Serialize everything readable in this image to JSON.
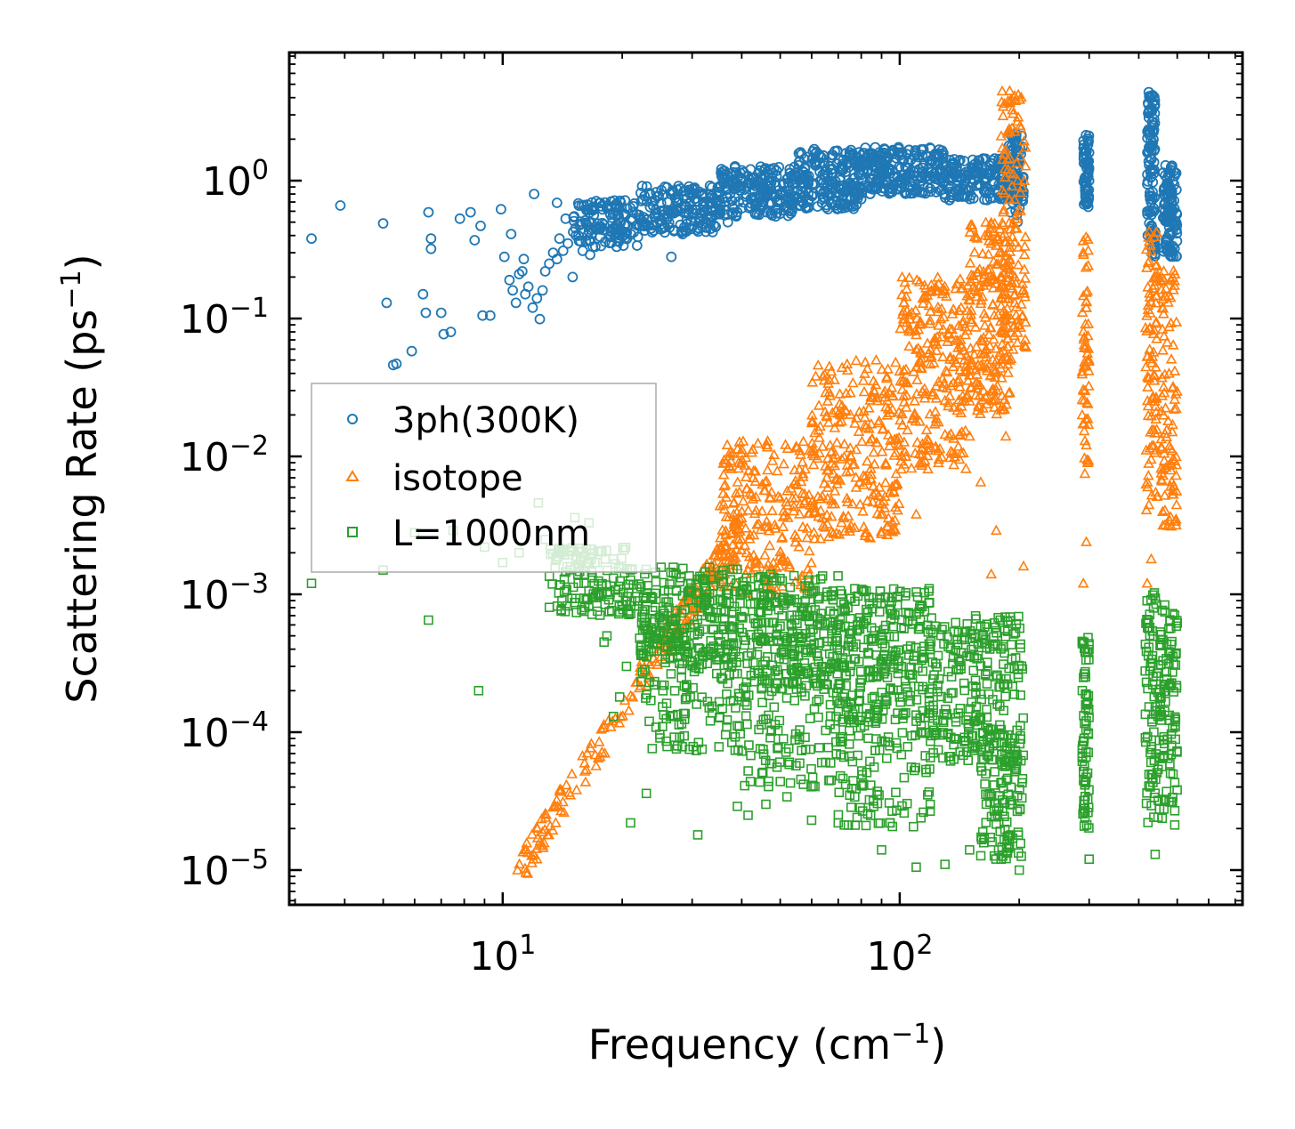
{
  "chart_data": {
    "type": "scatter",
    "title": "",
    "xlabel": "Frequency (cm",
    "xlabel_sup": "−1",
    "xlabel_tail": ")",
    "ylabel": "Scattering Rate (ps",
    "ylabel_sup": "−1",
    "ylabel_tail": ")",
    "xscale": "log",
    "yscale": "log",
    "xlim": [
      2.9,
      730
    ],
    "ylim": [
      5.6e-06,
      8.5
    ],
    "x_ticks": [
      {
        "value": 10,
        "base": "10",
        "exp": "1"
      },
      {
        "value": 100,
        "base": "10",
        "exp": "2"
      }
    ],
    "y_ticks": [
      {
        "value": 1,
        "base": "10",
        "exp": "0"
      },
      {
        "value": 0.1,
        "base": "10",
        "exp": "−1"
      },
      {
        "value": 0.01,
        "base": "10",
        "exp": "−2"
      },
      {
        "value": 0.001,
        "base": "10",
        "exp": "−3"
      },
      {
        "value": 0.0001,
        "base": "10",
        "exp": "−4"
      },
      {
        "value": 1e-05,
        "base": "10",
        "exp": "−5"
      }
    ],
    "legend_position": "center-left",
    "series": [
      {
        "name": "3ph(300K)",
        "marker": "circle",
        "color": "#1f77b4",
        "points": [
          [
            3.3,
            0.38
          ],
          [
            3.9,
            0.66
          ],
          [
            5.0,
            0.49
          ],
          [
            5.1,
            0.13
          ],
          [
            5.3,
            0.046
          ],
          [
            5.4,
            0.047
          ],
          [
            5.9,
            0.058
          ],
          [
            6.3,
            0.15
          ],
          [
            6.5,
            0.59
          ],
          [
            6.6,
            0.38
          ],
          [
            6.6,
            0.32
          ],
          [
            6.4,
            0.11
          ],
          [
            7.0,
            0.11
          ],
          [
            7.1,
            0.077
          ],
          [
            7.4,
            0.08
          ],
          [
            7.8,
            0.53
          ],
          [
            8.3,
            0.59
          ],
          [
            8.5,
            0.37
          ],
          [
            8.8,
            0.47
          ],
          [
            8.9,
            0.105
          ],
          [
            9.3,
            0.105
          ],
          [
            9.9,
            0.62
          ],
          [
            10.5,
            0.41
          ],
          [
            11.3,
            0.27
          ],
          [
            12.0,
            0.8
          ],
          [
            12.4,
            0.099
          ],
          [
            13.7,
            0.69
          ],
          [
            14.4,
            0.53
          ],
          [
            15.0,
            0.2
          ],
          [
            16.3,
            0.62
          ],
          [
            10.1,
            0.28
          ],
          [
            10.4,
            0.19
          ],
          [
            10.6,
            0.16
          ],
          [
            10.8,
            0.13
          ],
          [
            11.0,
            0.21
          ],
          [
            11.2,
            0.22
          ],
          [
            11.4,
            0.15
          ],
          [
            11.6,
            0.17
          ],
          [
            11.9,
            0.12
          ],
          [
            12.2,
            0.14
          ],
          [
            12.6,
            0.16
          ],
          [
            12.8,
            0.22
          ],
          [
            13.1,
            0.25
          ],
          [
            13.4,
            0.3
          ],
          [
            13.7,
            0.27
          ],
          [
            13.9,
            0.38
          ],
          [
            14.2,
            0.31
          ],
          [
            14.6,
            0.35
          ],
          [
            15.3,
            0.4
          ],
          [
            15.9,
            0.31
          ],
          [
            16.6,
            0.29
          ],
          [
            17.1,
            0.46
          ],
          [
            18.1,
            0.36
          ],
          [
            19.2,
            0.42
          ],
          [
            20.6,
            0.47
          ],
          [
            21.9,
            0.39
          ],
          [
            23.1,
            0.52
          ],
          [
            25.3,
            0.45
          ],
          [
            26.6,
            0.28
          ],
          [
            28.4,
            0.41
          ],
          [
            30.1,
            0.58
          ],
          [
            32.5,
            0.46
          ],
          [
            35.2,
            0.61
          ],
          [
            36.9,
            0.5
          ]
        ],
        "bands": [
          {
            "x": [
              15,
              22
            ],
            "y": [
              0.33,
              0.72
            ],
            "n": 130
          },
          {
            "x": [
              22,
              35
            ],
            "y": [
              0.42,
              0.92
            ],
            "n": 180
          },
          {
            "x": [
              35,
              55
            ],
            "y": [
              0.55,
              1.3
            ],
            "n": 210
          },
          {
            "x": [
              55,
              80
            ],
            "y": [
              0.62,
              1.7
            ],
            "n": 210
          },
          {
            "x": [
              80,
              130
            ],
            "y": [
              0.8,
              1.75
            ],
            "n": 240
          },
          {
            "x": [
              130,
              200
            ],
            "y": [
              0.72,
              1.45
            ],
            "n": 200
          },
          {
            "x": [
              188,
              205
            ],
            "y": [
              0.5,
              2.2
            ],
            "n": 60
          },
          {
            "x": [
              290,
              300
            ],
            "y": [
              0.6,
              2.2
            ],
            "n": 60
          },
          {
            "x": [
              420,
              440
            ],
            "y": [
              0.28,
              4.5
            ],
            "n": 110
          },
          {
            "x": [
              460,
              500
            ],
            "y": [
              0.28,
              1.3
            ],
            "n": 110
          }
        ]
      },
      {
        "name": "isotope",
        "marker": "triangle",
        "color": "#ff7f0e",
        "points": [
          [
            10.9,
            1e-05
          ],
          [
            12.2,
            1.2e-05
          ],
          [
            13.6,
            2.2e-05
          ],
          [
            14.8,
            3.5e-05
          ],
          [
            16.1,
            5.2e-05
          ],
          [
            17.5,
            8.5e-05
          ],
          [
            18.9,
            0.00012
          ],
          [
            20.3,
            0.00017
          ],
          [
            21.8,
            0.00023
          ],
          [
            23.5,
            0.00031
          ],
          [
            25.4,
            0.00042
          ],
          [
            27.5,
            0.00058
          ],
          [
            29.0,
            0.00065
          ],
          [
            31.0,
            0.0009
          ],
          [
            35.0,
            0.0014
          ],
          [
            38.0,
            0.0019
          ],
          [
            45.0,
            0.004
          ],
          [
            55.0,
            0.0062
          ],
          [
            65.0,
            0.0085
          ],
          [
            75.0,
            0.0078
          ],
          [
            90.0,
            0.0045
          ],
          [
            110.0,
            0.0038
          ],
          [
            125.0,
            0.011
          ],
          [
            150.0,
            0.014
          ],
          [
            160.0,
            0.0065
          ],
          [
            170.0,
            0.0014
          ],
          [
            175.0,
            0.0029
          ],
          [
            185.0,
            0.014
          ],
          [
            195.0,
            0.2
          ],
          [
            205.0,
            0.0016
          ],
          [
            290.0,
            0.0012
          ],
          [
            295.0,
            0.0024
          ],
          [
            420.0,
            0.0012
          ],
          [
            430.0,
            0.0018
          ],
          [
            440.0,
            0.2
          ]
        ],
        "bands": [
          {
            "x": [
              11,
              25
            ],
            "y": [
              1e-05,
              0.0004
            ],
            "n": 90,
            "diag": true
          },
          {
            "x": [
              25,
              40
            ],
            "y": [
              0.0004,
              0.003
            ],
            "n": 120,
            "diag": true
          },
          {
            "x": [
              35,
              60
            ],
            "y": [
              0.001,
              0.013
            ],
            "n": 220
          },
          {
            "x": [
              60,
              100
            ],
            "y": [
              0.0025,
              0.05
            ],
            "n": 260
          },
          {
            "x": [
              100,
              150
            ],
            "y": [
              0.008,
              0.2
            ],
            "n": 260
          },
          {
            "x": [
              150,
              190
            ],
            "y": [
              0.02,
              0.5
            ],
            "n": 200
          },
          {
            "x": [
              180,
              208
            ],
            "y": [
              0.05,
              4.5
            ],
            "n": 140
          },
          {
            "x": [
              288,
              300
            ],
            "y": [
              0.007,
              0.4
            ],
            "n": 60
          },
          {
            "x": [
              415,
              445
            ],
            "y": [
              0.004,
              0.45
            ],
            "n": 90
          },
          {
            "x": [
              455,
              500
            ],
            "y": [
              0.003,
              0.25
            ],
            "n": 100
          }
        ]
      },
      {
        "name": "L=1000nm",
        "marker": "square",
        "color": "#2ca02c",
        "points": [
          [
            3.3,
            0.0012
          ],
          [
            6.5,
            0.00065
          ],
          [
            8.7,
            0.0002
          ],
          [
            21.0,
            2.2e-05
          ],
          [
            23.0,
            3.6e-05
          ],
          [
            31.0,
            1.8e-05
          ],
          [
            39.0,
            2.9e-05
          ],
          [
            41.5,
            2.5e-05
          ],
          [
            46.0,
            3e-05
          ],
          [
            52.0,
            3.4e-05
          ],
          [
            60.0,
            2.3e-05
          ],
          [
            70.0,
            2.2e-05
          ],
          [
            90.0,
            1.4e-05
          ],
          [
            110.0,
            1.05e-05
          ],
          [
            130.0,
            1.1e-05
          ],
          [
            150.0,
            1.4e-05
          ],
          [
            180.0,
            1.2e-05
          ],
          [
            200.0,
            1e-05
          ],
          [
            300.0,
            1.2e-05
          ],
          [
            440.0,
            1.3e-05
          ],
          [
            5.0,
            0.0015
          ],
          [
            6.0,
            0.0028
          ],
          [
            7.5,
            0.0029
          ],
          [
            9.0,
            0.0022
          ],
          [
            10.0,
            0.0017
          ],
          [
            11.0,
            0.002
          ],
          [
            12.3,
            0.0046
          ],
          [
            12.8,
            0.0025
          ],
          [
            13.6,
            0.0018
          ],
          [
            14.3,
            0.0021
          ],
          [
            15.2,
            0.0036
          ],
          [
            16.5,
            0.0033
          ],
          [
            17.3,
            0.0017
          ],
          [
            18.0,
            0.00045
          ],
          [
            19.0,
            0.00013
          ],
          [
            20.5,
            0.0003
          ],
          [
            15.5,
            0.0012
          ],
          [
            14.1,
            0.0009
          ],
          [
            16.9,
            0.00095
          ],
          [
            18.3,
            0.0005
          ],
          [
            19.7,
            0.00018
          ]
        ],
        "bands": [
          {
            "x": [
              13,
              22
            ],
            "y": [
              0.0007,
              0.0022
            ],
            "n": 140
          },
          {
            "x": [
              22,
              40
            ],
            "y": [
              0.0003,
              0.0016
            ],
            "n": 250
          },
          {
            "x": [
              22,
              40
            ],
            "y": [
              7e-05,
              0.0006
            ],
            "n": 120
          },
          {
            "x": [
              40,
              70
            ],
            "y": [
              0.0002,
              0.0014
            ],
            "n": 260
          },
          {
            "x": [
              40,
              70
            ],
            "y": [
              4e-05,
              0.0003
            ],
            "n": 120
          },
          {
            "x": [
              70,
              120
            ],
            "y": [
              0.00012,
              0.0011
            ],
            "n": 260
          },
          {
            "x": [
              70,
              120
            ],
            "y": [
              2e-05,
              0.00015
            ],
            "n": 120
          },
          {
            "x": [
              120,
              205
            ],
            "y": [
              6e-05,
              0.0007
            ],
            "n": 240
          },
          {
            "x": [
              160,
              205
            ],
            "y": [
              1.2e-05,
              0.0001
            ],
            "n": 120
          },
          {
            "x": [
              288,
              300
            ],
            "y": [
              2e-05,
              0.0006
            ],
            "n": 70
          },
          {
            "x": [
              415,
              500
            ],
            "y": [
              2e-05,
              0.0011
            ],
            "n": 180
          }
        ]
      }
    ]
  }
}
